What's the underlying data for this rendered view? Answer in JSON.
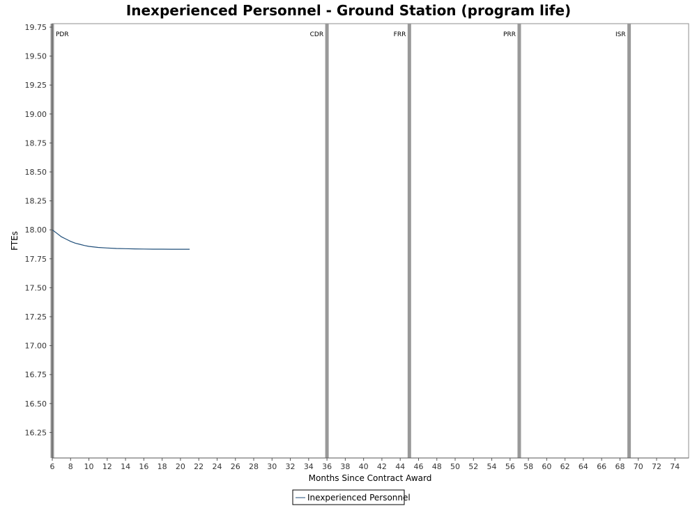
{
  "chart_data": {
    "type": "line",
    "title": "Inexperienced Personnel - Ground Station (program life)",
    "xlabel": "Months Since Contract Award",
    "ylabel": "FTEs",
    "xlim": [
      6,
      75.5
    ],
    "ylim": [
      16.03,
      19.78
    ],
    "xticks": [
      6,
      8,
      10,
      12,
      14,
      16,
      18,
      20,
      22,
      24,
      26,
      28,
      30,
      32,
      34,
      36,
      38,
      40,
      42,
      44,
      46,
      48,
      50,
      52,
      54,
      56,
      58,
      60,
      62,
      64,
      66,
      68,
      70,
      72,
      74
    ],
    "yticks": [
      16.25,
      16.5,
      16.75,
      17.0,
      17.25,
      17.5,
      17.75,
      18.0,
      18.25,
      18.5,
      18.75,
      19.0,
      19.25,
      19.5,
      19.75
    ],
    "grid": false,
    "legend_position": "bottom-center",
    "milestones": [
      {
        "label": "PDR",
        "x": 6,
        "label_side": "right"
      },
      {
        "label": "CDR",
        "x": 36,
        "label_side": "left"
      },
      {
        "label": "FRR",
        "x": 45,
        "label_side": "left"
      },
      {
        "label": "PRR",
        "x": 57,
        "label_side": "left"
      },
      {
        "label": "ISR",
        "x": 69,
        "label_side": "left"
      }
    ],
    "series": [
      {
        "name": "Inexperienced Personnel",
        "color": "#1f4e79",
        "x": [
          6,
          6.5,
          7,
          7.5,
          8,
          8.5,
          9,
          9.5,
          10,
          11,
          12,
          13,
          14,
          15,
          16,
          17,
          18,
          19,
          20,
          21
        ],
        "y": [
          18.0,
          17.97,
          17.94,
          17.92,
          17.9,
          17.885,
          17.875,
          17.865,
          17.857,
          17.848,
          17.843,
          17.839,
          17.837,
          17.835,
          17.834,
          17.833,
          17.833,
          17.832,
          17.832,
          17.832
        ]
      }
    ]
  }
}
